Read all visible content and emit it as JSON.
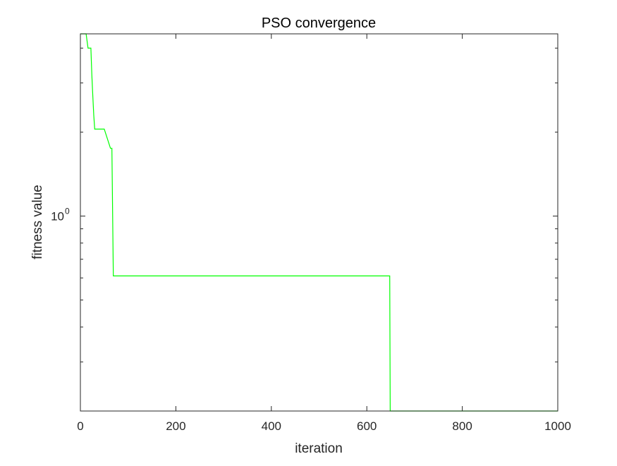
{
  "chart_data": {
    "type": "line",
    "title": "PSO convergence",
    "xlabel": "iteration",
    "ylabel": "fitness value",
    "xlim": [
      0,
      1000
    ],
    "ylim": [
      0.2,
      4.5
    ],
    "yscale": "log",
    "grid": false,
    "x_ticks": [
      0,
      200,
      400,
      600,
      800,
      1000
    ],
    "x_tick_labels": [
      "0",
      "200",
      "400",
      "600",
      "800",
      "1000"
    ],
    "y_ticks": [
      1
    ],
    "y_tick_labels": [
      {
        "base": "10",
        "exponent": "0"
      }
    ],
    "series": [
      {
        "color": "#00ff00",
        "step": true,
        "x": [
          0,
          12,
          16,
          22,
          24,
          26,
          28,
          30,
          50,
          63,
          66,
          69,
          648,
          649,
          1000
        ],
        "y": [
          4.5,
          4.5,
          4.0,
          4.0,
          3.2,
          2.7,
          2.3,
          2.05,
          2.05,
          1.75,
          1.75,
          0.61,
          0.61,
          0.2,
          0.2
        ]
      }
    ]
  }
}
